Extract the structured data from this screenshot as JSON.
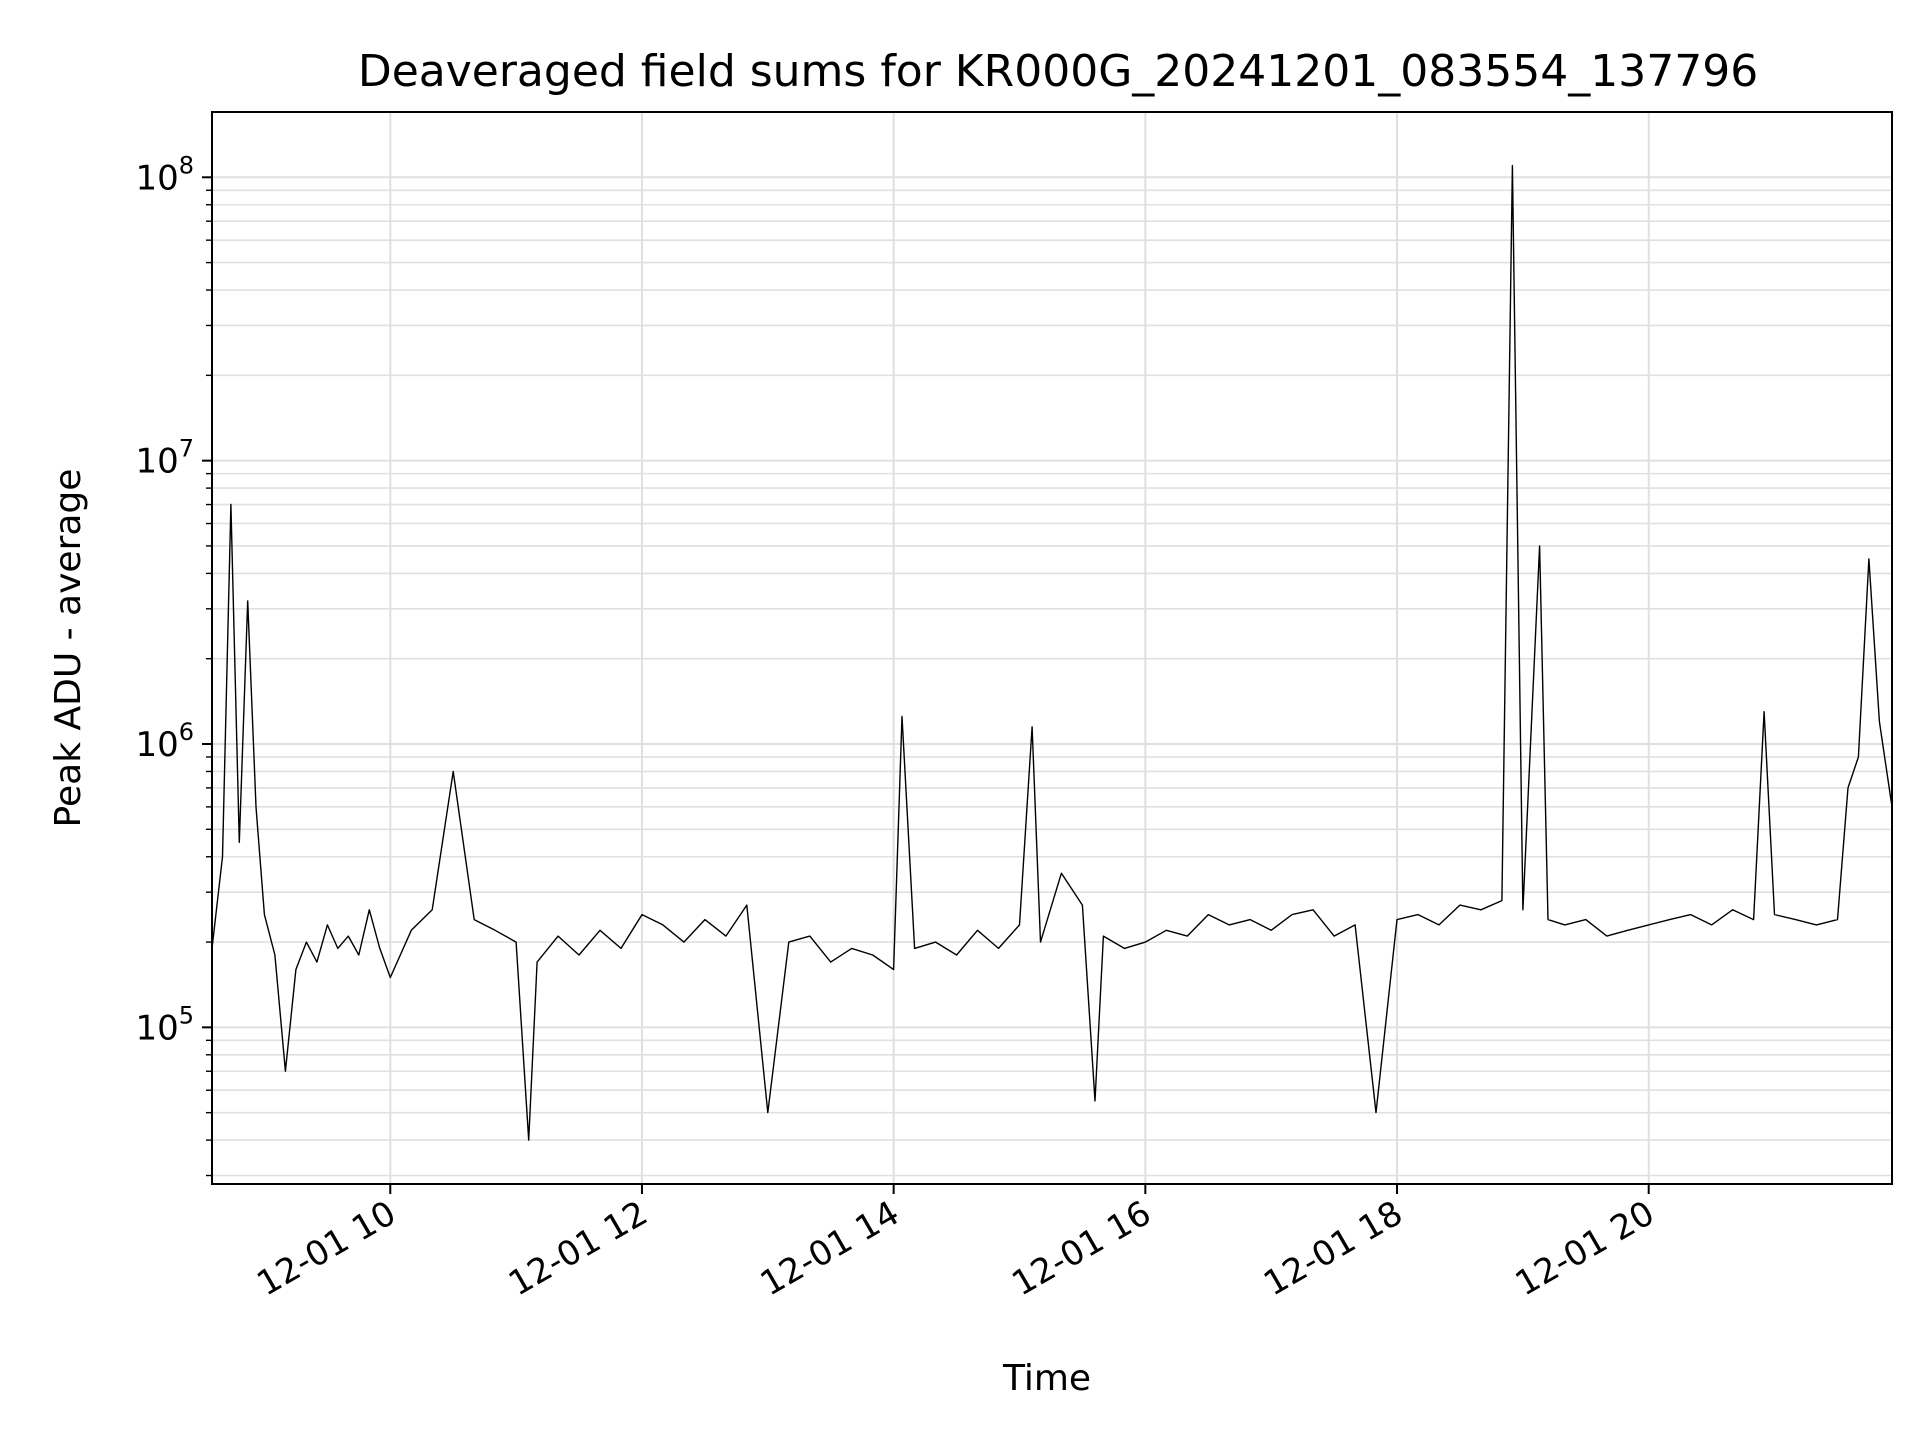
{
  "chart_data": {
    "type": "line",
    "title": "Deaveraged field sums for KR000G_20241201_083554_137796",
    "xlabel": "Time",
    "ylabel": "Peak ADU - average",
    "yscale": "log",
    "ylim": [
      28000,
      170000000
    ],
    "xlim": [
      "2024-12-01 08:35",
      "2024-12-01 21:56"
    ],
    "x_ticks": [
      {
        "at": "2024-12-01 10:00",
        "label": "12-01 10"
      },
      {
        "at": "2024-12-01 12:00",
        "label": "12-01 12"
      },
      {
        "at": "2024-12-01 14:00",
        "label": "12-01 14"
      },
      {
        "at": "2024-12-01 16:00",
        "label": "12-01 16"
      },
      {
        "at": "2024-12-01 18:00",
        "label": "12-01 18"
      },
      {
        "at": "2024-12-01 20:00",
        "label": "12-01 20"
      }
    ],
    "y_ticks": [
      {
        "value": 100000,
        "base": "10",
        "exp": "5"
      },
      {
        "value": 1000000,
        "base": "10",
        "exp": "6"
      },
      {
        "value": 10000000,
        "base": "10",
        "exp": "7"
      },
      {
        "value": 100000000,
        "base": "10",
        "exp": "8"
      }
    ],
    "grid": true,
    "line_color": "#000000",
    "grid_color": "#e0e0e0",
    "series": [
      {
        "x": [
          "2024-12-01 08:35",
          "2024-12-01 08:40",
          "2024-12-01 08:44",
          "2024-12-01 08:48",
          "2024-12-01 08:52",
          "2024-12-01 08:56",
          "2024-12-01 09:00",
          "2024-12-01 09:05",
          "2024-12-01 09:10",
          "2024-12-01 09:15",
          "2024-12-01 09:20",
          "2024-12-01 09:25",
          "2024-12-01 09:30",
          "2024-12-01 09:35",
          "2024-12-01 09:40",
          "2024-12-01 09:45",
          "2024-12-01 09:50",
          "2024-12-01 09:55",
          "2024-12-01 10:00",
          "2024-12-01 10:10",
          "2024-12-01 10:20",
          "2024-12-01 10:30",
          "2024-12-01 10:40",
          "2024-12-01 10:50",
          "2024-12-01 11:00",
          "2024-12-01 11:06",
          "2024-12-01 11:10",
          "2024-12-01 11:20",
          "2024-12-01 11:30",
          "2024-12-01 11:40",
          "2024-12-01 11:50",
          "2024-12-01 12:00",
          "2024-12-01 12:10",
          "2024-12-01 12:20",
          "2024-12-01 12:30",
          "2024-12-01 12:40",
          "2024-12-01 12:50",
          "2024-12-01 13:00",
          "2024-12-01 13:10",
          "2024-12-01 13:20",
          "2024-12-01 13:30",
          "2024-12-01 13:40",
          "2024-12-01 13:50",
          "2024-12-01 14:00",
          "2024-12-01 14:04",
          "2024-12-01 14:10",
          "2024-12-01 14:20",
          "2024-12-01 14:30",
          "2024-12-01 14:40",
          "2024-12-01 14:50",
          "2024-12-01 15:00",
          "2024-12-01 15:06",
          "2024-12-01 15:10",
          "2024-12-01 15:20",
          "2024-12-01 15:30",
          "2024-12-01 15:36",
          "2024-12-01 15:40",
          "2024-12-01 15:50",
          "2024-12-01 16:00",
          "2024-12-01 16:10",
          "2024-12-01 16:20",
          "2024-12-01 16:30",
          "2024-12-01 16:40",
          "2024-12-01 16:50",
          "2024-12-01 17:00",
          "2024-12-01 17:10",
          "2024-12-01 17:20",
          "2024-12-01 17:30",
          "2024-12-01 17:40",
          "2024-12-01 17:50",
          "2024-12-01 18:00",
          "2024-12-01 18:10",
          "2024-12-01 18:20",
          "2024-12-01 18:30",
          "2024-12-01 18:40",
          "2024-12-01 18:50",
          "2024-12-01 18:55",
          "2024-12-01 19:00",
          "2024-12-01 19:08",
          "2024-12-01 19:12",
          "2024-12-01 19:20",
          "2024-12-01 19:30",
          "2024-12-01 19:40",
          "2024-12-01 19:50",
          "2024-12-01 20:00",
          "2024-12-01 20:10",
          "2024-12-01 20:20",
          "2024-12-01 20:30",
          "2024-12-01 20:40",
          "2024-12-01 20:50",
          "2024-12-01 20:55",
          "2024-12-01 21:00",
          "2024-12-01 21:10",
          "2024-12-01 21:20",
          "2024-12-01 21:30",
          "2024-12-01 21:35",
          "2024-12-01 21:40",
          "2024-12-01 21:45",
          "2024-12-01 21:50",
          "2024-12-01 21:56"
        ],
        "y": [
          190000,
          400000,
          7000000,
          450000,
          3200000,
          600000,
          250000,
          180000,
          70000,
          160000,
          200000,
          170000,
          230000,
          190000,
          210000,
          180000,
          260000,
          190000,
          150000,
          220000,
          260000,
          800000,
          240000,
          220000,
          200000,
          40000,
          170000,
          210000,
          180000,
          220000,
          190000,
          250000,
          230000,
          200000,
          240000,
          210000,
          270000,
          50000,
          200000,
          210000,
          170000,
          190000,
          180000,
          160000,
          1250000,
          190000,
          200000,
          180000,
          220000,
          190000,
          230000,
          1150000,
          200000,
          350000,
          270000,
          55000,
          210000,
          190000,
          200000,
          220000,
          210000,
          250000,
          230000,
          240000,
          220000,
          250000,
          260000,
          210000,
          230000,
          50000,
          240000,
          250000,
          230000,
          270000,
          260000,
          280000,
          110000000,
          260000,
          5000000,
          240000,
          230000,
          240000,
          210000,
          220000,
          230000,
          240000,
          250000,
          230000,
          260000,
          240000,
          1300000,
          250000,
          240000,
          230000,
          240000,
          700000,
          900000,
          4500000,
          1200000,
          600000
        ]
      }
    ]
  }
}
